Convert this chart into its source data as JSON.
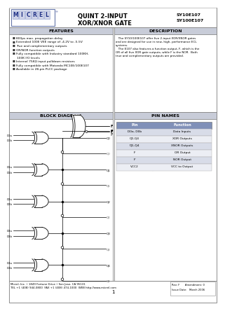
{
  "bg_color": "#ffffff",
  "header": {
    "title_line1": "QUINT 2-INPUT",
    "title_line2": "XOR/XNOR GATE",
    "part1": "SY10E107",
    "part2": "SY100E107"
  },
  "features_title": "FEATURES",
  "features": [
    "800ps max. propagation delay",
    "Extended 100E VEE range of -4.2V to -5.5V",
    "True and complementary outputs",
    "OR/NOR function outputs",
    "Fully compatible with Industry standard 100KH,",
    "  100K I/O levels",
    "Internal 75KΩ input pulldown resistors",
    "Fully compatible with Motorola MC10E/100E107",
    "Available in 28-pin PLCC package"
  ],
  "description_title": "DESCRIPTION",
  "description_lines": [
    "   The SY10/100E107 offer five 2-input XOR/XNOR gates",
    "and are designed for use in new, high- performance ECL",
    "systems.",
    "   The E107 also features a function output, F, which is the",
    "OR of all five XOR gate outputs, while F is the NOR.  Both",
    "true and complementary outputs are provided."
  ],
  "block_diagram_title": "BLOCK DIAGRAM",
  "pin_names_title": "PIN NAMES",
  "pin_names_header": [
    "Pin",
    "Function"
  ],
  "pin_names_rows": [
    [
      "D0a, D0b",
      "Data Inputs"
    ],
    [
      "Q0-Q4",
      "XOR Outputs"
    ],
    [
      "Q0-Q4",
      "XNOR Outputs"
    ],
    [
      "F",
      "OR Output"
    ],
    [
      "F",
      "NOR Output"
    ],
    [
      "VCC2",
      "VCC to Output"
    ]
  ],
  "pin_row_colors_alt": [
    "#d8dce8",
    "#eceef4"
  ],
  "pin_header_color": "#8090b8",
  "footer_left1": "Micrel, Inc. • 1849 Fortune Drive • San Jose, CA 95131",
  "footer_left2": "TEL +1 (408) 944-0800  FAX +1 (408) 474-1000  WEB http://www.micrel.com",
  "footer_center": "1",
  "footer_right1": "Rev: F      Amendment: 0",
  "footer_right2": "Issue Date:   March 2006",
  "gate_inputs": [
    [
      "D0a",
      "D0b"
    ],
    [
      "D1a",
      "D1b"
    ],
    [
      "D2a",
      "D2b"
    ],
    [
      "D3a",
      "D3b"
    ],
    [
      "D4a",
      "D4b"
    ]
  ],
  "gate_q_outputs": [
    "Q0",
    "Q1",
    "Q2",
    "Q3",
    "Q4"
  ],
  "gate_qb_outputs": [
    "Q0",
    "Q1",
    "Q2",
    "Q3",
    "Q4"
  ],
  "section_title_bg": "#c8ccd8",
  "section_title_color": "#000000"
}
